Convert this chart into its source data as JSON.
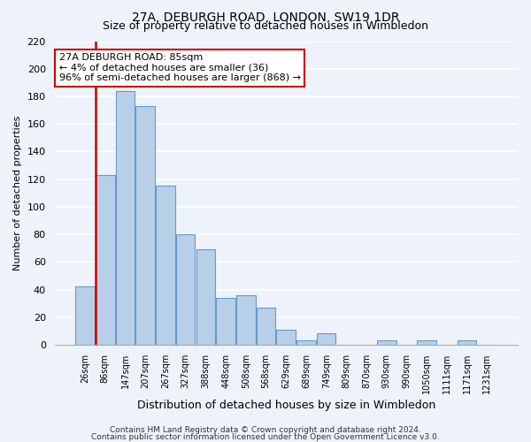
{
  "title": "27A, DEBURGH ROAD, LONDON, SW19 1DR",
  "subtitle": "Size of property relative to detached houses in Wimbledon",
  "xlabel": "Distribution of detached houses by size in Wimbledon",
  "ylabel": "Number of detached properties",
  "bar_labels": [
    "26sqm",
    "86sqm",
    "147sqm",
    "207sqm",
    "267sqm",
    "327sqm",
    "388sqm",
    "448sqm",
    "508sqm",
    "568sqm",
    "629sqm",
    "689sqm",
    "749sqm",
    "809sqm",
    "870sqm",
    "930sqm",
    "990sqm",
    "1050sqm",
    "1111sqm",
    "1171sqm",
    "1231sqm"
  ],
  "bar_heights": [
    42,
    123,
    184,
    173,
    115,
    80,
    69,
    34,
    36,
    27,
    11,
    3,
    8,
    0,
    0,
    3,
    0,
    3,
    0,
    3,
    0
  ],
  "bar_color": "#b8cfe8",
  "bar_edge_color": "#6699cc",
  "ylim": [
    0,
    220
  ],
  "yticks": [
    0,
    20,
    40,
    60,
    80,
    100,
    120,
    140,
    160,
    180,
    200,
    220
  ],
  "annotation_title": "27A DEBURGH ROAD: 85sqm",
  "annotation_line1": "← 4% of detached houses are smaller (36)",
  "annotation_line2": "96% of semi-detached houses are larger (868) →",
  "footer_line1": "Contains HM Land Registry data © Crown copyright and database right 2024.",
  "footer_line2": "Contains public sector information licensed under the Open Government Licence v3.0.",
  "background_color": "#edf2fb",
  "grid_color": "#ffffff",
  "annotation_box_facecolor": "#ffffff",
  "annotation_box_edgecolor": "#cc0000",
  "property_line_color": "#cc0000",
  "property_line_x": 0.525
}
